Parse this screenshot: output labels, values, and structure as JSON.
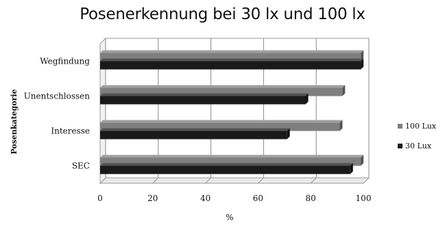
{
  "chart_data": {
    "type": "bar",
    "orientation": "horizontal",
    "style": "3d",
    "title": "Posenerkennung bei 30 lx und 100 lx",
    "xlabel": "%",
    "ylabel": "Posenkategorie",
    "categories": [
      "Wegfindung",
      "Unentschlossen",
      "Interesse",
      "SEC"
    ],
    "series": [
      {
        "name": "100 Lux",
        "values": [
          99,
          92,
          91,
          99
        ],
        "color": "#7f7f7f"
      },
      {
        "name": "30 Lux",
        "values": [
          99,
          78,
          71,
          95
        ],
        "color": "#1a1a1a"
      }
    ],
    "xlim": [
      0,
      100
    ],
    "xticks": [
      "0",
      "20",
      "40",
      "60",
      "80",
      "100"
    ],
    "grid": true,
    "legend_position": "right"
  }
}
